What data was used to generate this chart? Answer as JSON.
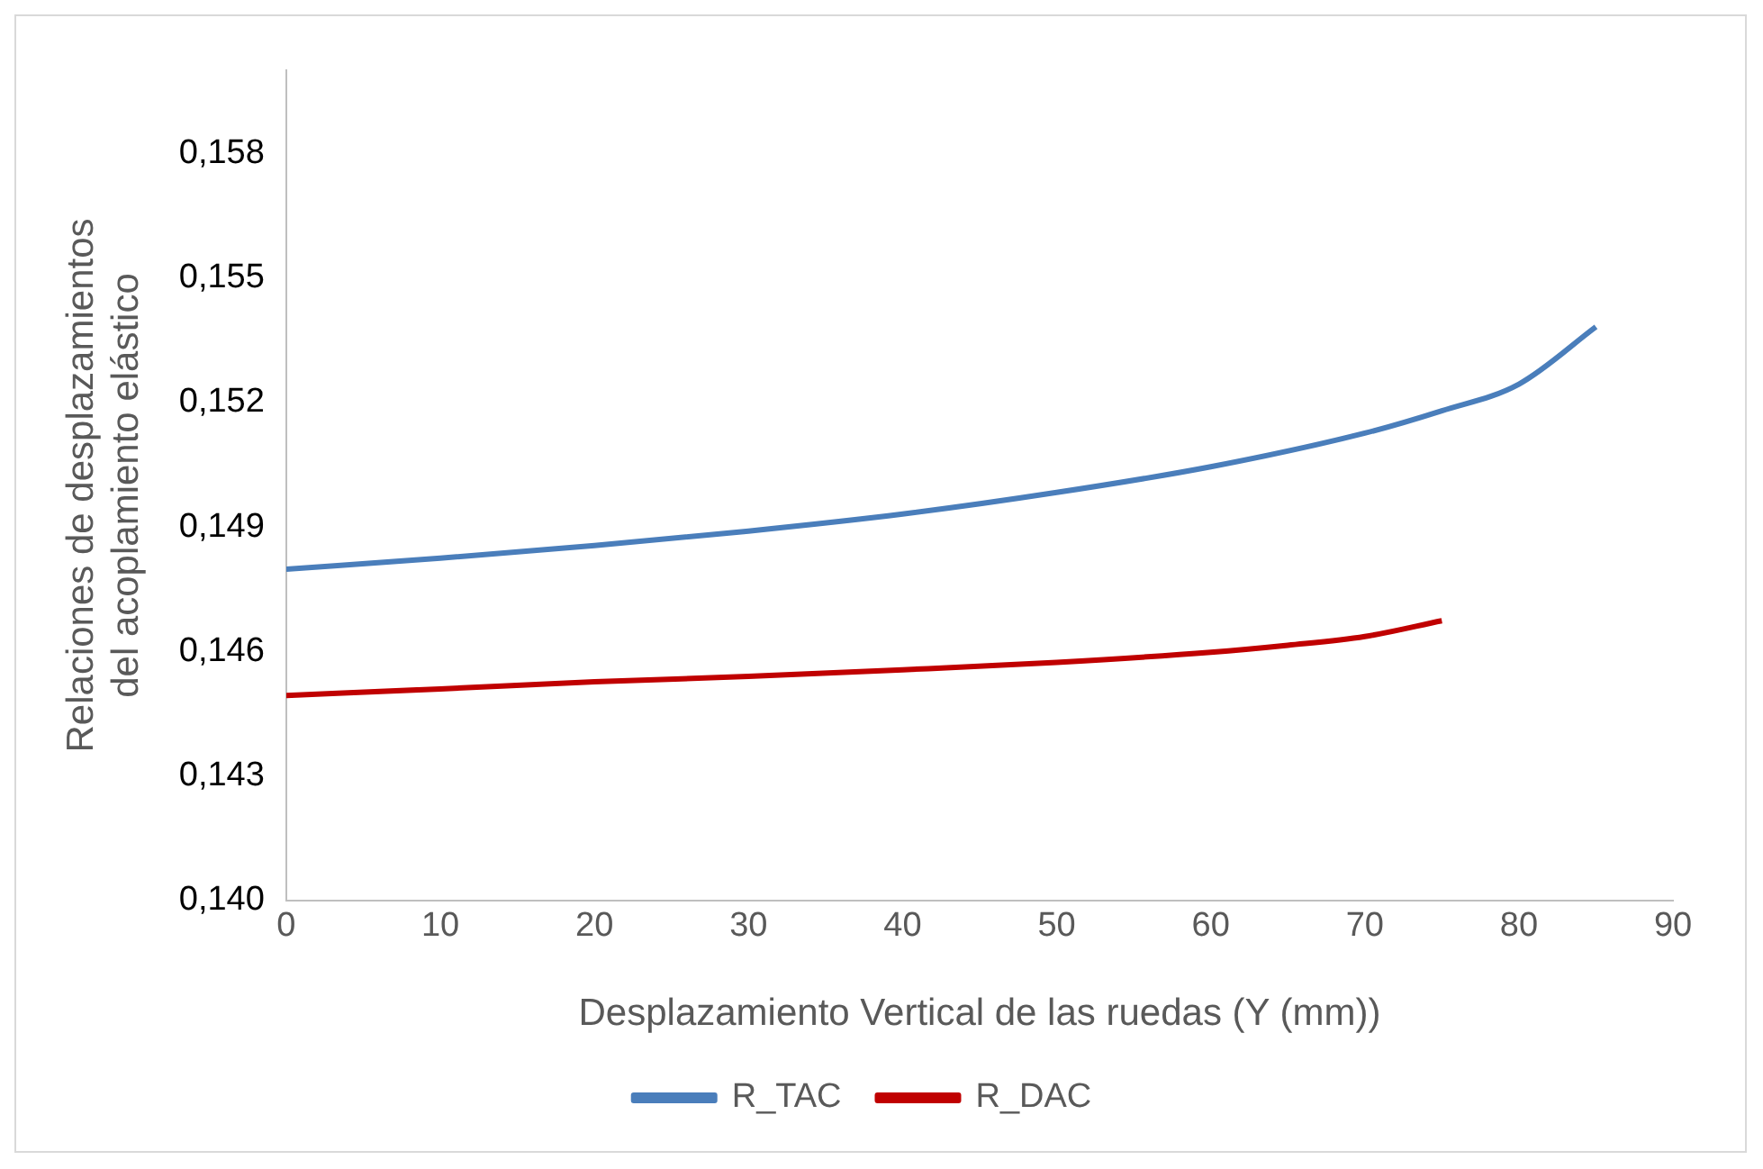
{
  "chart_data": {
    "type": "line",
    "xlabel": "Desplazamiento Vertical de las ruedas (Y (mm))",
    "ylabel": "Relaciones de desplazamientos del acoplamiento elástico",
    "xlim": [
      0,
      90
    ],
    "xticks": [
      0,
      10,
      20,
      30,
      40,
      50,
      60,
      70,
      80,
      90
    ],
    "ylim": [
      0.14,
      0.16
    ],
    "yticks": [
      {
        "value": 0.14,
        "label": "0,140"
      },
      {
        "value": 0.143,
        "label": "0,143"
      },
      {
        "value": 0.146,
        "label": "0,146"
      },
      {
        "value": 0.149,
        "label": "0,149"
      },
      {
        "value": 0.152,
        "label": "0,152"
      },
      {
        "value": 0.155,
        "label": "0,155"
      },
      {
        "value": 0.158,
        "label": "0,158"
      }
    ],
    "grid": false,
    "legend": "bottom",
    "marker": "none",
    "line_style": "solid",
    "series": [
      {
        "name": "R_TAC",
        "color": "#4a7ebb",
        "x": [
          0,
          10,
          20,
          30,
          40,
          50,
          60,
          70,
          75,
          80,
          85
        ],
        "values": [
          0.14798,
          0.14825,
          0.14855,
          0.1489,
          0.14931,
          0.14983,
          0.15045,
          0.15126,
          0.1518,
          0.15244,
          0.15382
        ]
      },
      {
        "name": "R_DAC",
        "color": "#c00000",
        "x": [
          0,
          10,
          20,
          30,
          40,
          50,
          60,
          65,
          70,
          75
        ],
        "values": [
          0.14494,
          0.1451,
          0.14527,
          0.1454,
          0.14556,
          0.14574,
          0.14598,
          0.14615,
          0.14636,
          0.14674
        ]
      }
    ]
  }
}
